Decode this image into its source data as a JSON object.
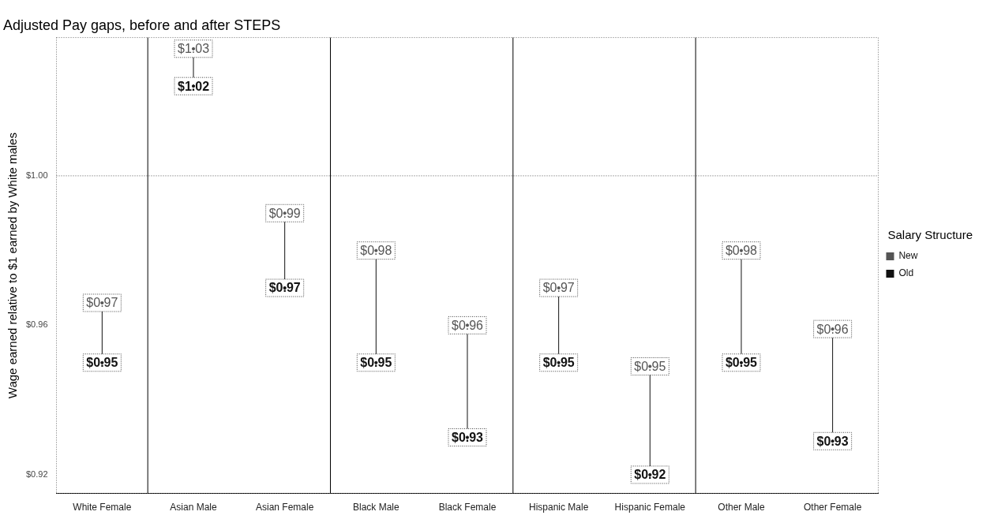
{
  "chart_data": {
    "type": "scatter",
    "title": "Adjusted Pay gaps, before and after STEPS",
    "ylabel": "Wage earned relative to $1 earned by White males",
    "legend_title": "Salary Structure",
    "legend": "right",
    "marker": "circle",
    "grid": false,
    "categories": [
      "White Female",
      "Asian Male",
      "Asian Female",
      "Black Male",
      "Black Female",
      "Hispanic Male",
      "Hispanic Female",
      "Other Male",
      "Other Female"
    ],
    "series": [
      {
        "name": "New",
        "color": "#555555",
        "values": [
          0.966,
          1.034,
          0.99,
          0.98,
          0.96,
          0.97,
          0.949,
          0.98,
          0.959
        ],
        "value_labels": [
          "$0.97",
          "$1.03",
          "$0.99",
          "$0.98",
          "$0.96",
          "$0.97",
          "$0.95",
          "$0.98",
          "$0.96"
        ]
      },
      {
        "name": "Old",
        "color": "#111111",
        "values": [
          0.95,
          1.024,
          0.97,
          0.95,
          0.93,
          0.95,
          0.92,
          0.95,
          0.929
        ],
        "value_labels": [
          "$0.95",
          "$1.02",
          "$0.97",
          "$0.95",
          "$0.93",
          "$0.95",
          "$0.92",
          "$0.95",
          "$0.93"
        ]
      }
    ],
    "ylim": [
      0.915,
      1.037
    ],
    "yticks": [
      {
        "value": 0.92,
        "label": "$0.92"
      },
      {
        "value": 0.96,
        "label": "$0.96"
      },
      {
        "value": 1.0,
        "label": "$1.00"
      }
    ],
    "ref_lines": [
      {
        "axis": "y",
        "value": 1.0,
        "line_style": "dotted",
        "color": "#555555"
      }
    ]
  }
}
